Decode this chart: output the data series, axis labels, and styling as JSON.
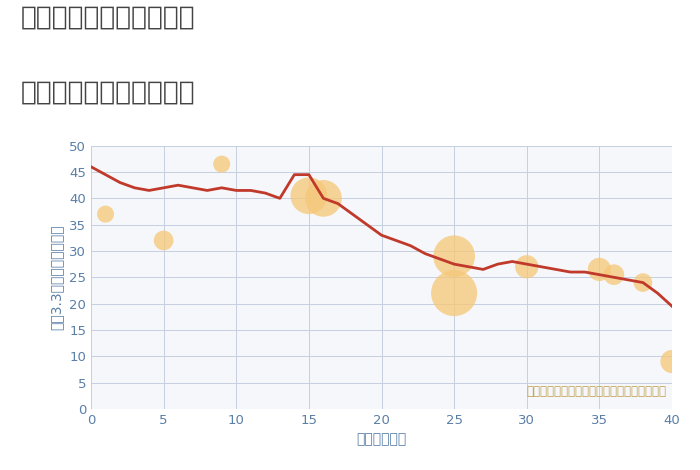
{
  "title_line1": "三重県鈴鹿市南若松町の",
  "title_line2": "築年数別中古戸建て価格",
  "xlabel": "築年数（年）",
  "ylabel": "平（3.3㎡）単価（万円）",
  "annotation": "円の大きさは、取引のあった物件面積を示す",
  "line_x": [
    0,
    1,
    2,
    3,
    4,
    5,
    6,
    7,
    8,
    9,
    10,
    11,
    12,
    13,
    14,
    15,
    16,
    17,
    18,
    19,
    20,
    21,
    22,
    23,
    24,
    25,
    26,
    27,
    28,
    29,
    30,
    31,
    32,
    33,
    34,
    35,
    36,
    37,
    38,
    39,
    40
  ],
  "line_y": [
    46,
    44.5,
    43,
    42,
    41.5,
    42,
    42.5,
    42,
    41.5,
    42,
    41.5,
    41.5,
    41,
    40,
    44.5,
    44.5,
    40,
    39,
    37,
    35,
    33,
    32,
    31,
    29.5,
    28.5,
    27.5,
    27,
    26.5,
    27.5,
    28,
    27.5,
    27,
    26.5,
    26,
    26,
    25.5,
    25,
    24.5,
    24,
    22,
    19.5
  ],
  "scatter_x": [
    1,
    5,
    9,
    15,
    16,
    25,
    25,
    30,
    35,
    36,
    38,
    40
  ],
  "scatter_y": [
    37,
    32,
    46.5,
    40.5,
    40,
    29,
    22,
    27,
    26.5,
    25.5,
    24,
    9
  ],
  "scatter_size": [
    150,
    200,
    150,
    700,
    700,
    900,
    1100,
    280,
    280,
    220,
    180,
    280
  ],
  "scatter_color": "#f5c87a",
  "scatter_alpha": 0.78,
  "line_color": "#c0392b",
  "line_width": 2.0,
  "bg_color": "#f5f7fb",
  "grid_color": "#c5cfe0",
  "xlim": [
    0,
    40
  ],
  "ylim": [
    0,
    50
  ],
  "xticks": [
    0,
    5,
    10,
    15,
    20,
    25,
    30,
    35,
    40
  ],
  "yticks": [
    0,
    5,
    10,
    15,
    20,
    25,
    30,
    35,
    40,
    45,
    50
  ],
  "tick_color": "#5a7fa8",
  "axis_label_color": "#5a7fa8",
  "title_color": "#444444",
  "title_fontsize": 19,
  "axis_fontsize": 10,
  "annotation_fontsize": 8.5,
  "annotation_color": "#c0a050"
}
